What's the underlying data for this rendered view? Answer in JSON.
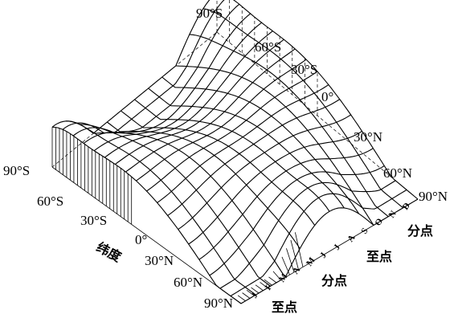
{
  "back_latitude_labels": [
    "90°S",
    "60°S",
    "30°S",
    "0°",
    "30°N",
    "60°N",
    "90°N"
  ],
  "front_latitude_labels": [
    "90°S",
    "60°S",
    "30°S",
    "0°",
    "30°N",
    "60°N",
    "90°N"
  ],
  "latitude_axis_title": "纬度",
  "month_labels": [
    "J",
    "F",
    "M",
    "A",
    "M",
    "J",
    "J",
    "A",
    "S",
    "O",
    "N",
    "D"
  ],
  "season_labels": {
    "solstice_front": "至点",
    "equinox_front": "分点",
    "solstice_right": "至点",
    "equinox_right": "分点"
  }
}
